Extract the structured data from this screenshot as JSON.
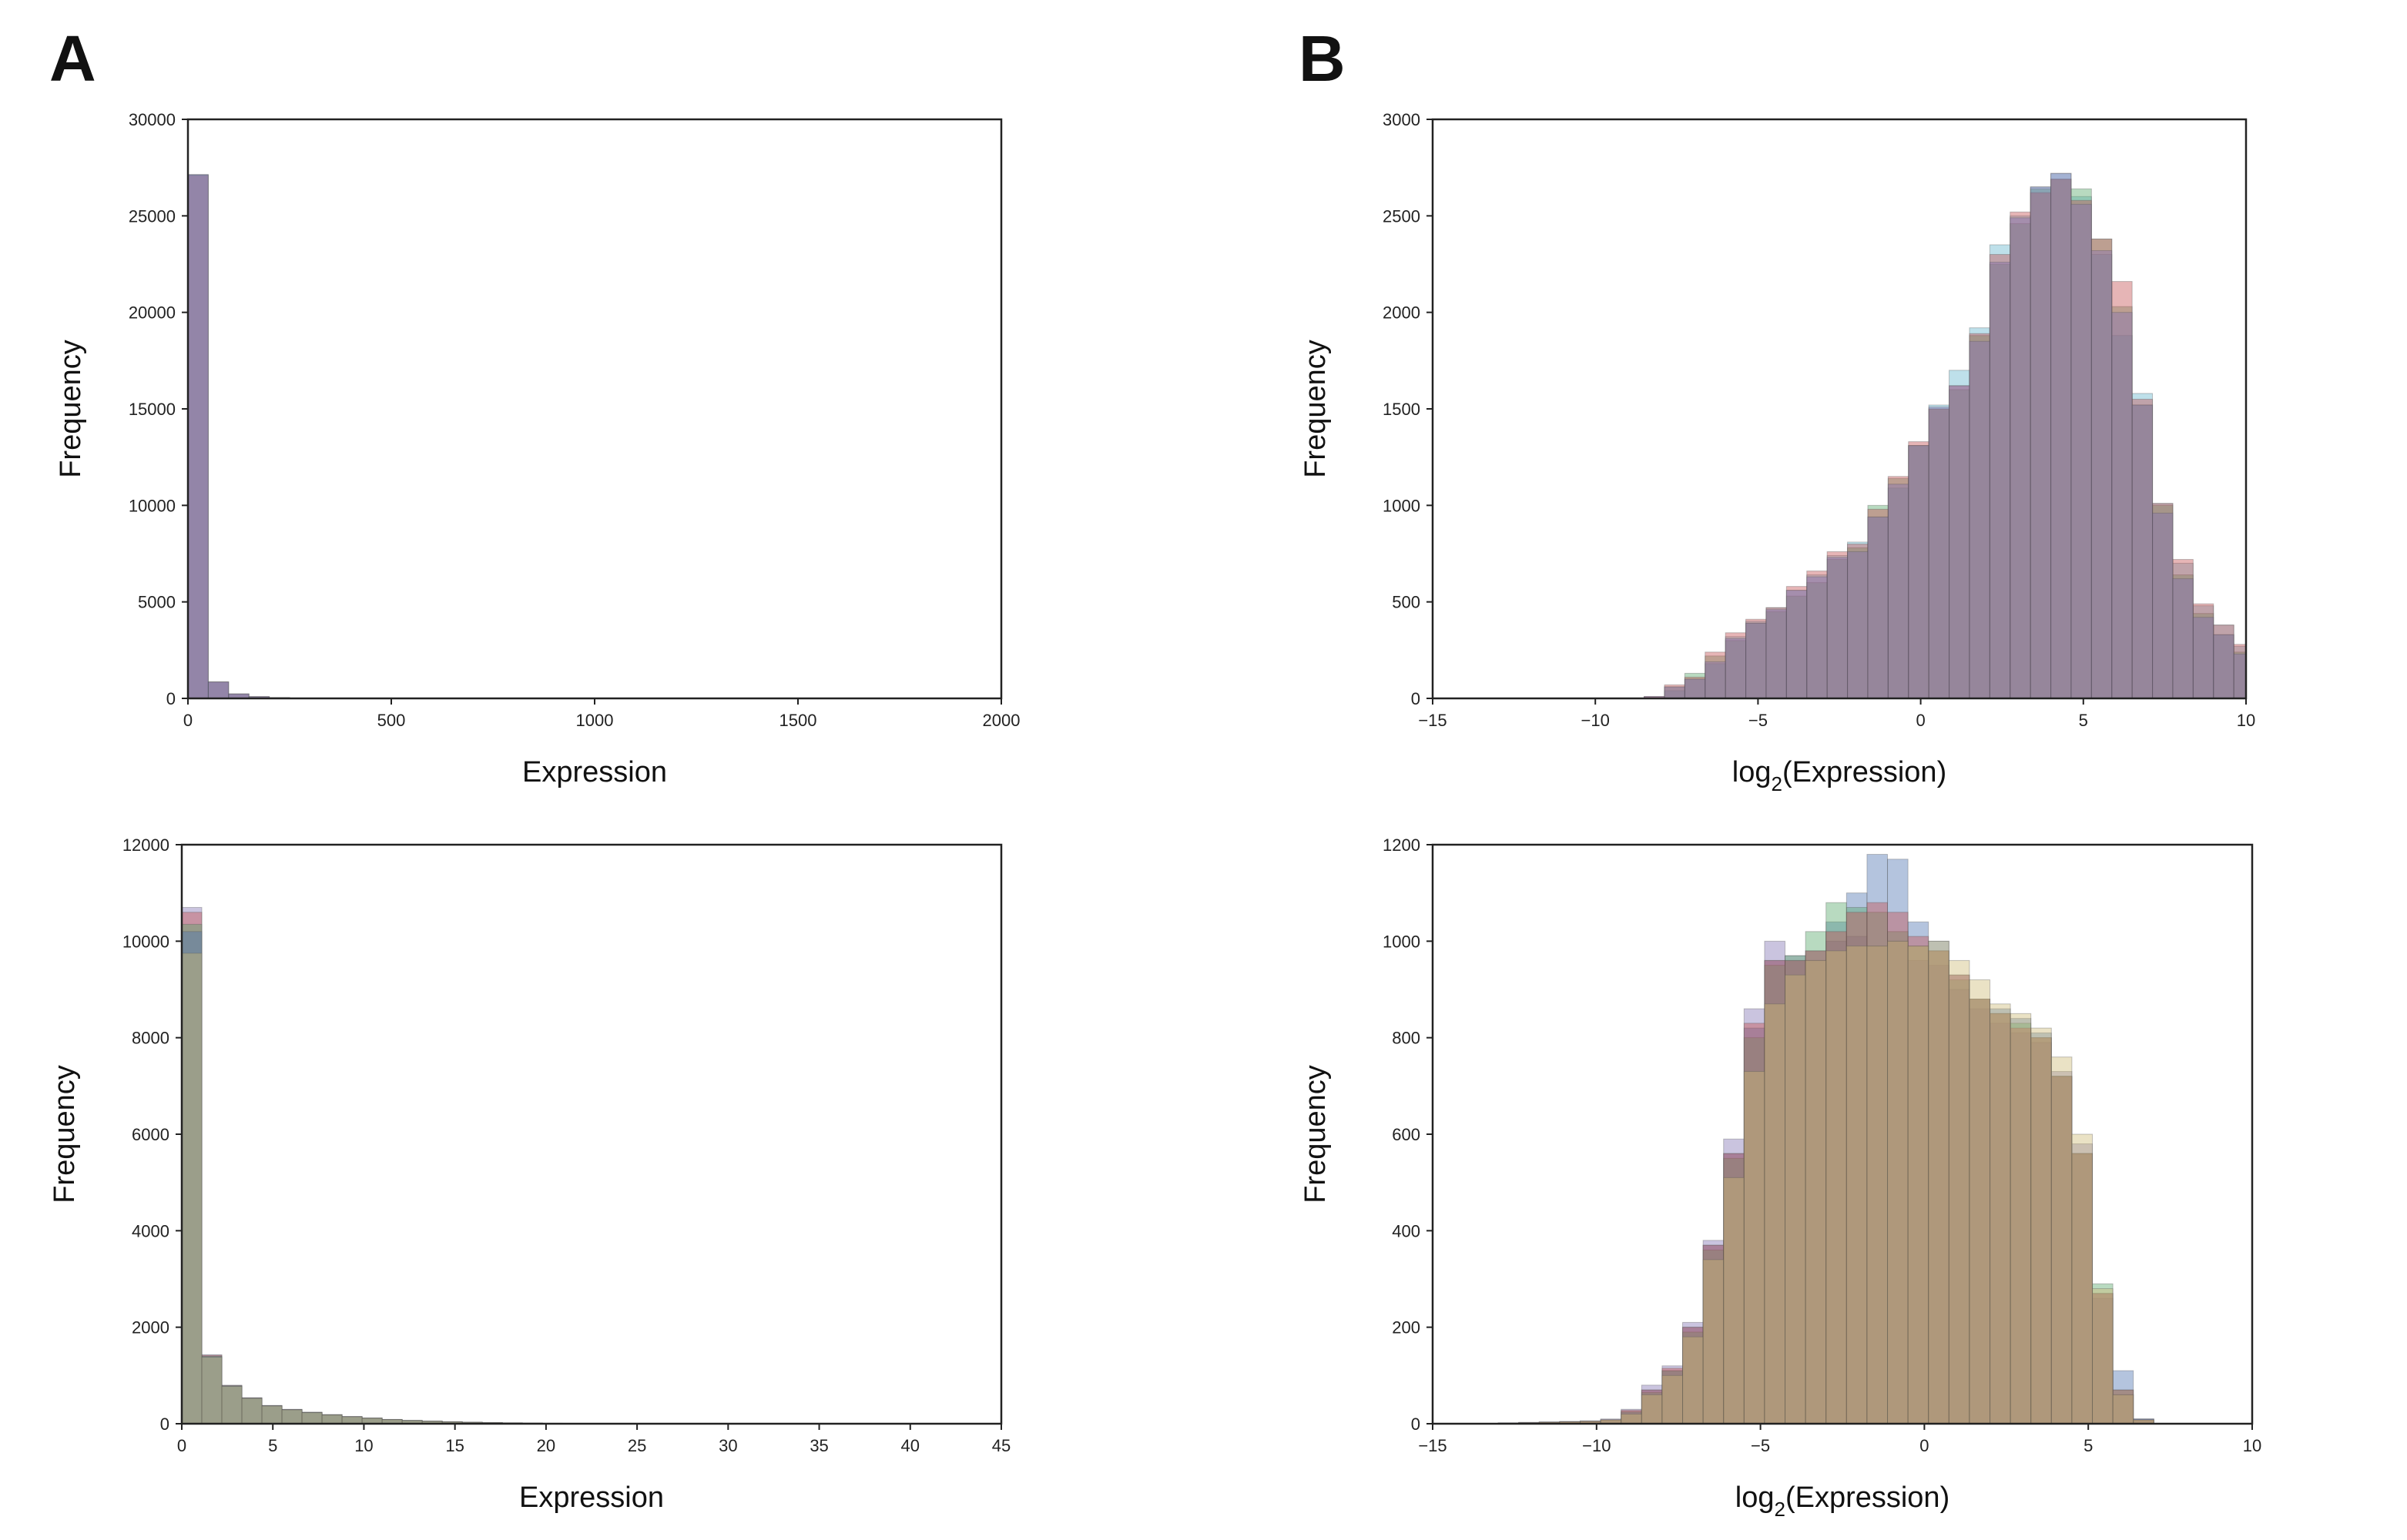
{
  "panels": {
    "a_label": "A",
    "b_label": "B"
  },
  "colors": {
    "series": [
      "#4c72b0",
      "#55a868",
      "#c44e52",
      "#8172b2",
      "#ccb974",
      "#64b5cd"
    ],
    "axis": "#222222"
  },
  "chart_data": [
    {
      "type": "bar",
      "title": "",
      "xlabel": "Expression",
      "ylabel": "Frequency",
      "xlim": [
        0,
        2000
      ],
      "ylim": [
        0,
        30000
      ],
      "xticks": [
        "0",
        "500",
        "1000",
        "1500",
        "2000"
      ],
      "yticks": [
        "0",
        "5000",
        "10000",
        "15000",
        "20000",
        "25000",
        "30000"
      ],
      "bin_start": 0,
      "bin_width": 50,
      "series": [
        {
          "color": "#8172b2",
          "values": [
            27150,
            850,
            230,
            90,
            40,
            15,
            8,
            4
          ]
        },
        {
          "color": "#c44e52",
          "values": [
            27100,
            860,
            235,
            92,
            42,
            16,
            8,
            4
          ]
        },
        {
          "color": "#4c72b0",
          "values": [
            27120,
            855,
            232,
            91,
            41,
            15,
            8,
            4
          ]
        }
      ]
    },
    {
      "type": "bar",
      "title": "",
      "xlabel": "log2(Expression)",
      "ylabel": "Frequency",
      "xlim": [
        -15,
        10
      ],
      "ylim": [
        0,
        3000
      ],
      "xticks": [
        "−15",
        "−10",
        "−5",
        "0",
        "5",
        "10"
      ],
      "yticks": [
        "0",
        "500",
        "1000",
        "1500",
        "2000",
        "2500",
        "3000"
      ],
      "bin_start": -8.5,
      "bin_width": 0.625,
      "series": [
        {
          "color": "#64b5cd",
          "values": [
            5,
            40,
            100,
            180,
            320,
            400,
            470,
            560,
            640,
            740,
            810,
            940,
            1090,
            1310,
            1520,
            1700,
            1920,
            2350,
            2500,
            2650,
            2720,
            2600,
            2300,
            1880,
            1580,
            1010,
            700,
            480,
            380,
            270,
            180,
            120,
            60,
            40,
            20
          ]
        },
        {
          "color": "#55a868",
          "values": [
            5,
            60,
            130,
            220,
            300,
            390,
            450,
            530,
            600,
            720,
            780,
            1000,
            1140,
            1310,
            1500,
            1600,
            1880,
            2250,
            2460,
            2640,
            2690,
            2640,
            2380,
            2030,
            1520,
            1000,
            640,
            440,
            330,
            240,
            150,
            100,
            50,
            30,
            10
          ]
        },
        {
          "color": "#c44e52",
          "values": [
            10,
            70,
            110,
            240,
            340,
            410,
            470,
            580,
            660,
            760,
            800,
            980,
            1150,
            1330,
            1500,
            1620,
            1890,
            2300,
            2520,
            2620,
            2690,
            2580,
            2380,
            2160,
            1550,
            1010,
            720,
            490,
            380,
            280,
            190,
            110,
            50,
            30,
            10
          ]
        },
        {
          "color": "#8172b2",
          "values": [
            10,
            60,
            100,
            190,
            310,
            390,
            460,
            560,
            630,
            730,
            760,
            940,
            1110,
            1310,
            1510,
            1620,
            1850,
            2260,
            2490,
            2650,
            2720,
            2560,
            2320,
            2000,
            1520,
            960,
            620,
            420,
            330,
            230,
            140,
            90,
            40,
            20,
            5
          ]
        }
      ]
    },
    {
      "type": "bar",
      "title": "",
      "xlabel": "Expression",
      "ylabel": "Frequency",
      "xlim": [
        0,
        45
      ],
      "ylim": [
        0,
        12000
      ],
      "xticks": [
        "0",
        "5",
        "10",
        "15",
        "20",
        "25",
        "30",
        "35",
        "40",
        "45"
      ],
      "yticks": [
        "0",
        "2000",
        "4000",
        "6000",
        "8000",
        "10000",
        "12000"
      ],
      "bin_start": 0,
      "bin_width": 1.1,
      "series": [
        {
          "color": "#8172b2",
          "values": [
            10700,
            1430,
            800,
            540,
            380,
            300,
            240,
            190,
            150,
            120,
            90,
            70,
            55,
            42,
            32,
            24,
            18,
            13,
            9,
            6,
            4,
            3
          ]
        },
        {
          "color": "#c44e52",
          "values": [
            10600,
            1420,
            790,
            535,
            375,
            295,
            236,
            187,
            148,
            118,
            88,
            68,
            54,
            41,
            31,
            23,
            17,
            12,
            9,
            6,
            4,
            3
          ]
        },
        {
          "color": "#55a868",
          "values": [
            10350,
            1400,
            785,
            530,
            372,
            292,
            234,
            185,
            146,
            116,
            87,
            67,
            53,
            40,
            30,
            22,
            17,
            12,
            8,
            6,
            4,
            2
          ]
        },
        {
          "color": "#4c72b0",
          "values": [
            10200,
            1390,
            780,
            528,
            370,
            290,
            232,
            183,
            145,
            115,
            86,
            66,
            52,
            40,
            30,
            22,
            16,
            12,
            8,
            5,
            3,
            2
          ]
        },
        {
          "color": "#ccb974",
          "values": [
            9750,
            1380,
            775,
            525,
            368,
            288,
            230,
            182,
            144,
            114,
            85,
            65,
            52,
            39,
            29,
            22,
            16,
            11,
            8,
            5,
            3,
            2
          ]
        }
      ]
    },
    {
      "type": "bar",
      "title": "",
      "xlabel": "log2(Expression)",
      "ylabel": "Frequency",
      "xlim": [
        -15,
        10
      ],
      "ylim": [
        0,
        1200
      ],
      "xticks": [
        "−15",
        "−10",
        "−5",
        "0",
        "5",
        "10"
      ],
      "yticks": [
        "0",
        "200",
        "400",
        "600",
        "800",
        "1000",
        "1200"
      ],
      "bin_start": -13,
      "bin_width": 0.625,
      "series": [
        {
          "color": "#8172b2",
          "values": [
            2,
            3,
            4,
            5,
            6,
            10,
            30,
            80,
            120,
            210,
            380,
            590,
            860,
            1000,
            970,
            960,
            1000,
            1010,
            990,
            1000,
            960,
            950,
            900,
            860,
            830,
            810,
            790,
            730,
            580,
            260,
            60,
            10
          ]
        },
        {
          "color": "#4c72b0",
          "values": [
            1,
            2,
            3,
            4,
            5,
            8,
            25,
            70,
            110,
            200,
            370,
            560,
            820,
            960,
            960,
            980,
            1040,
            1100,
            1180,
            1170,
            1040,
            1000,
            930,
            880,
            860,
            840,
            810,
            720,
            560,
            270,
            110,
            10
          ]
        },
        {
          "color": "#55a868",
          "values": [
            1,
            2,
            3,
            4,
            5,
            8,
            25,
            65,
            110,
            190,
            360,
            550,
            800,
            950,
            970,
            1020,
            1080,
            1070,
            1060,
            1020,
            990,
            980,
            920,
            880,
            850,
            830,
            800,
            720,
            560,
            290,
            70,
            8
          ]
        },
        {
          "color": "#c44e52",
          "values": [
            1,
            2,
            3,
            4,
            5,
            8,
            28,
            70,
            115,
            200,
            370,
            560,
            830,
            960,
            960,
            980,
            1020,
            1060,
            1080,
            1060,
            1010,
            980,
            930,
            880,
            850,
            820,
            800,
            720,
            560,
            270,
            70,
            8
          ]
        },
        {
          "color": "#ccb974",
          "values": [
            1,
            2,
            3,
            4,
            5,
            8,
            20,
            60,
            100,
            180,
            340,
            510,
            730,
            870,
            930,
            960,
            980,
            990,
            990,
            1000,
            990,
            1000,
            960,
            920,
            870,
            850,
            820,
            760,
            600,
            280,
            60,
            8
          ]
        }
      ]
    }
  ]
}
